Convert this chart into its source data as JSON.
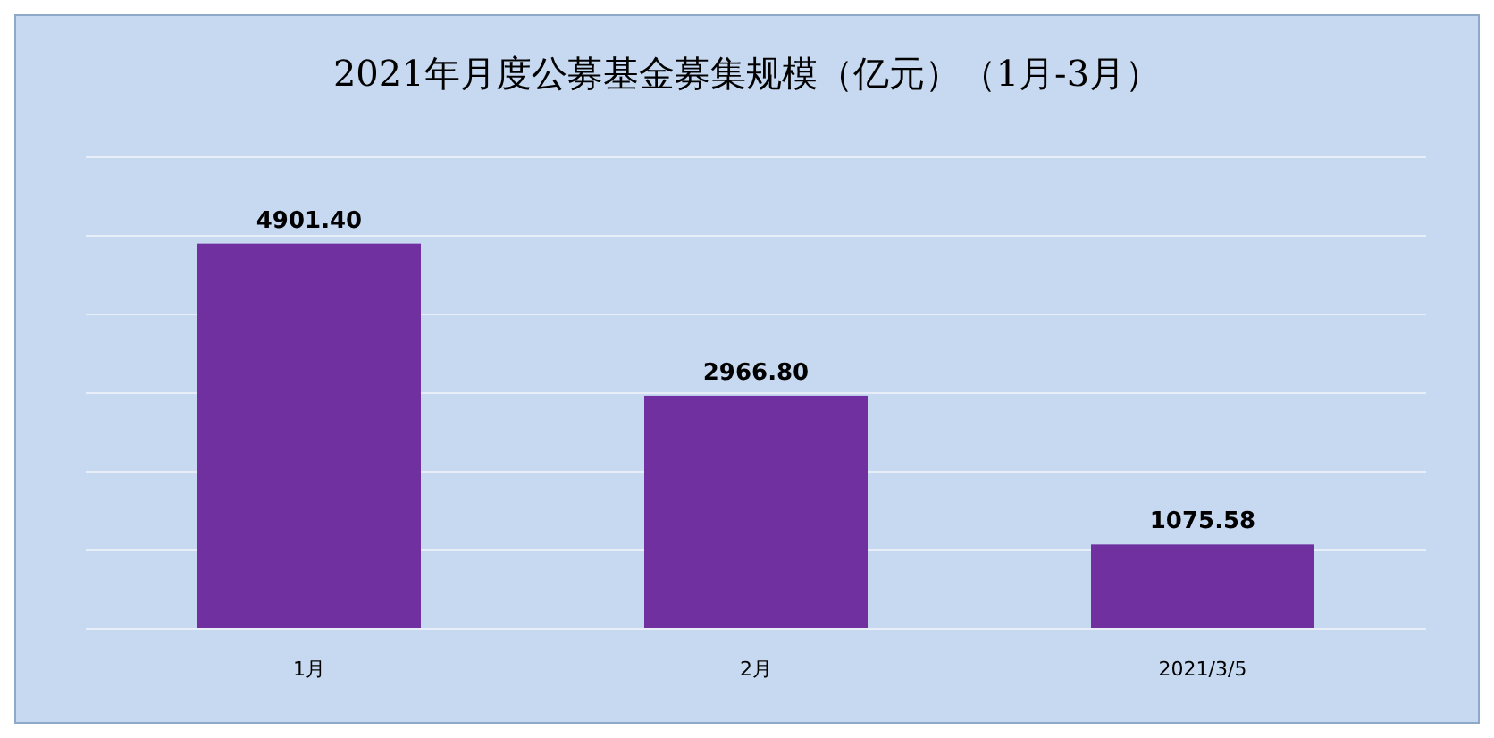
{
  "chart_data": {
    "type": "bar",
    "title": "2021年月度公募基金募集规模（亿元）（1月-3月）",
    "categories": [
      "1月",
      "2月",
      "2021/3/5"
    ],
    "values": [
      4901.4,
      2966.8,
      1075.58
    ],
    "value_labels": [
      "4901.40",
      "2966.80",
      "1075.58"
    ],
    "color": "#7030a0",
    "ylim": [
      0,
      6000
    ],
    "yticks": [
      {
        "value": 0,
        "label": null
      },
      {
        "value": 1000,
        "label": null
      },
      {
        "value": 2000,
        "label": null
      },
      {
        "value": 3000,
        "label": null
      },
      {
        "value": 4000,
        "label": null
      },
      {
        "value": 5000,
        "label": null
      },
      {
        "value": 6000,
        "label": null
      }
    ],
    "grid": "y",
    "tick_labels": "x"
  }
}
